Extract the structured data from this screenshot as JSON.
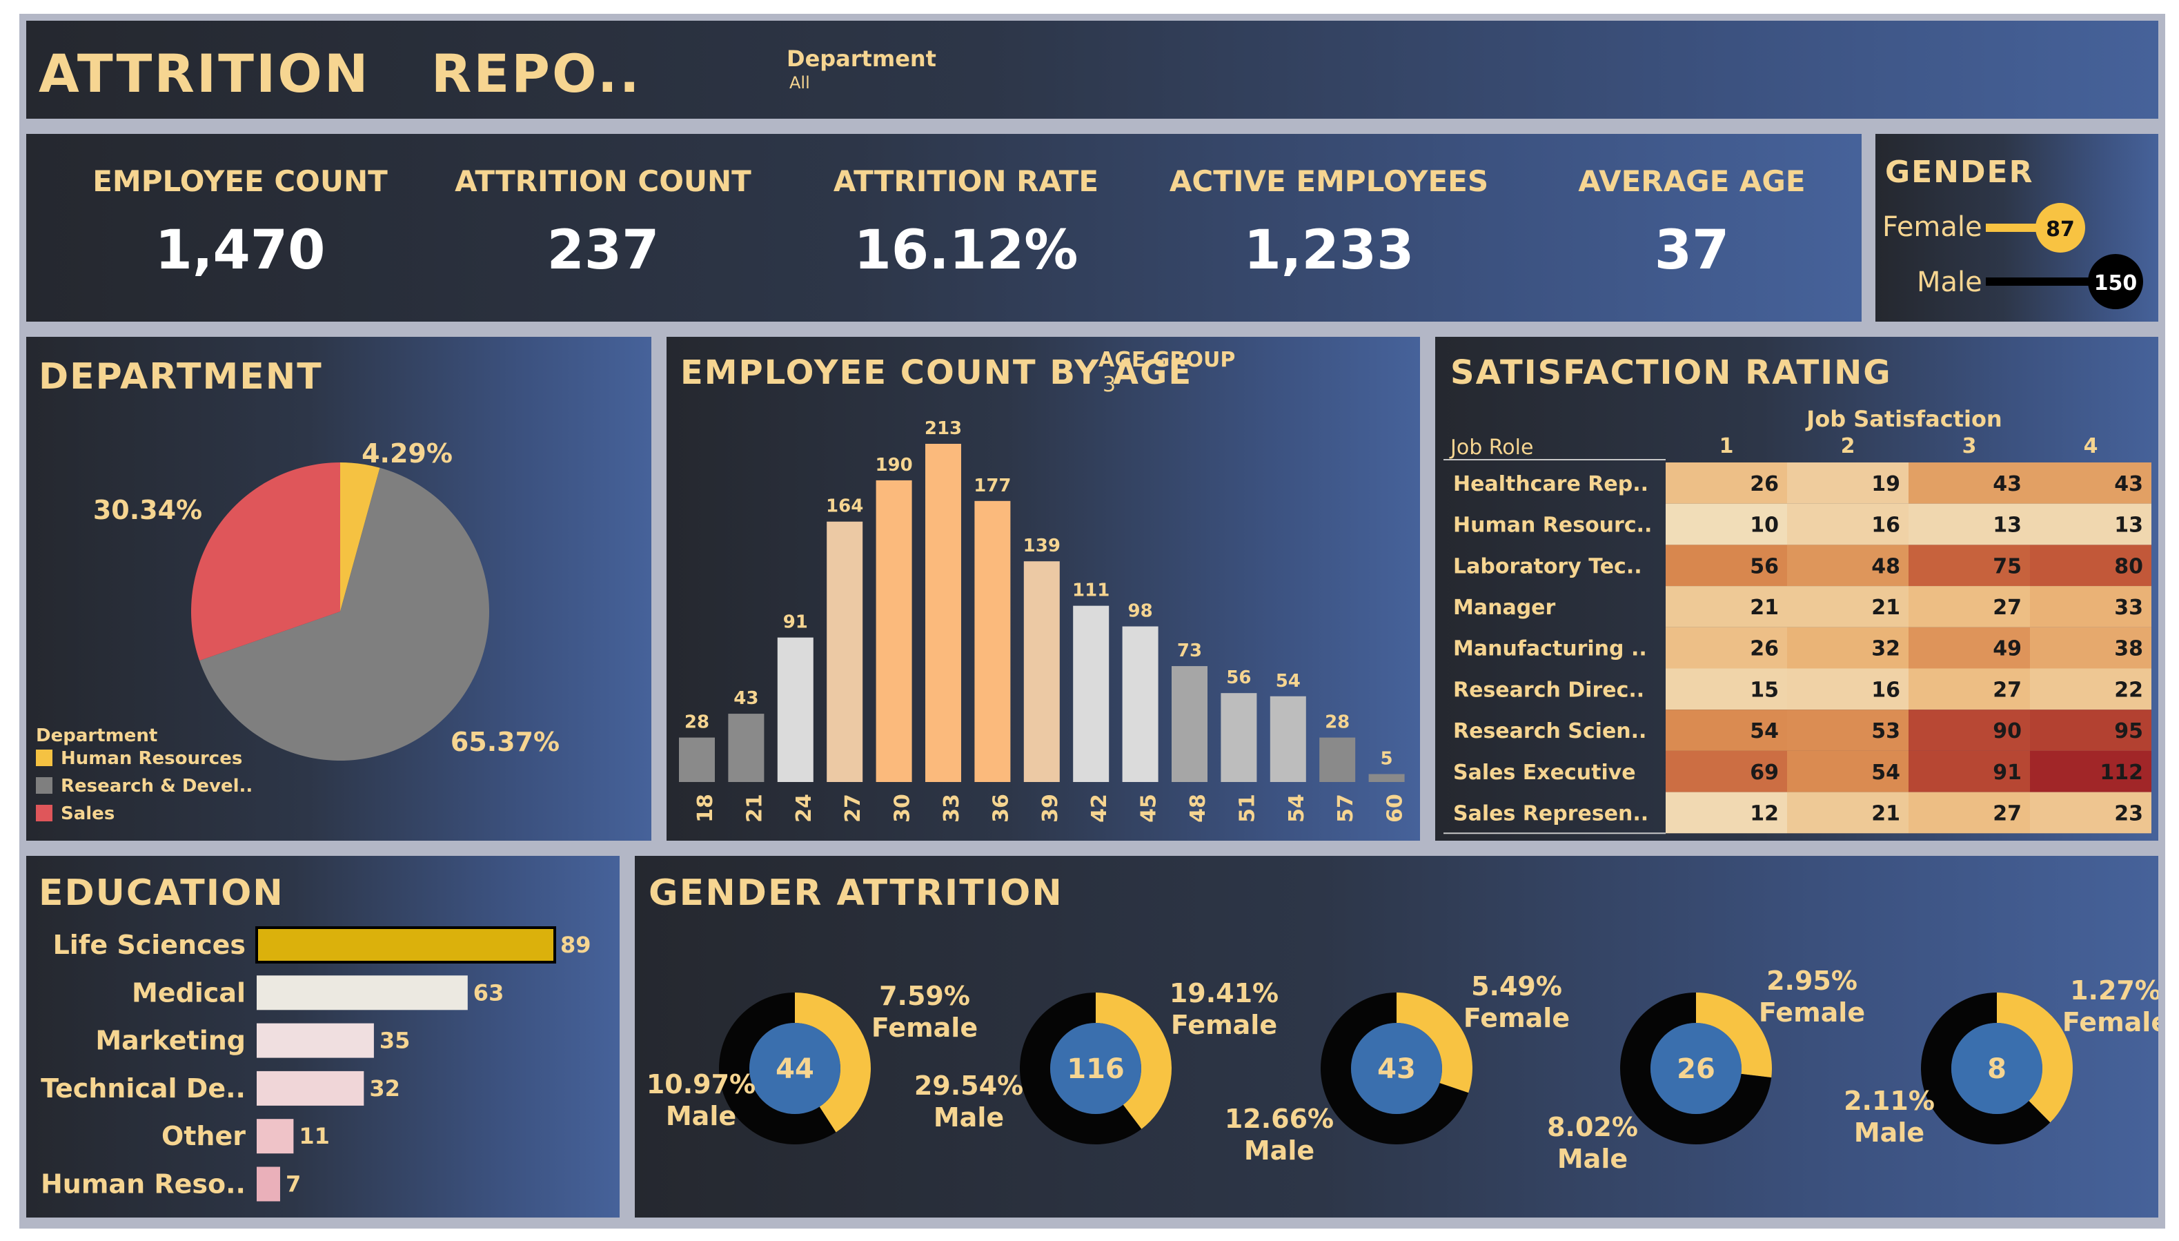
{
  "header": {
    "title": "ATTRITION   REPO..",
    "filter_label": "Department",
    "filter_value": "All"
  },
  "kpis": [
    {
      "label": "EMPLOYEE COUNT",
      "value": "1,470"
    },
    {
      "label": "ATTRITION COUNT",
      "value": "237"
    },
    {
      "label": "ATTRITION RATE",
      "value": "16.12%"
    },
    {
      "label": "ACTIVE EMPLOYEES",
      "value": "1,233"
    },
    {
      "label": "AVERAGE AGE",
      "value": "37"
    }
  ],
  "gender": {
    "title": "GENDER",
    "rows": [
      {
        "label": "Female",
        "value": "87",
        "color": "#f8c342"
      },
      {
        "label": "Male",
        "value": "150",
        "color": "#000000"
      }
    ]
  },
  "department": {
    "title": "DEPARTMENT",
    "legend_title": "Department",
    "slices": [
      {
        "name": "Human Resources",
        "pct": 4.29,
        "label": "4.29%",
        "color": "#f5c242"
      },
      {
        "name": "Research & Devel..",
        "pct": 65.37,
        "label": "65.37%",
        "color": "#7f7f7f"
      },
      {
        "name": "Sales",
        "pct": 30.34,
        "label": "30.34%",
        "color": "#df565a"
      }
    ]
  },
  "age": {
    "title": "EMPLOYEE COUNT BY AGE",
    "overlay_label": "AGE GROUP",
    "overlay_sub": "3"
  },
  "chart_data": {
    "type": "bar",
    "title": "EMPLOYEE COUNT BY AGE",
    "categories": [
      "18",
      "21",
      "24",
      "27",
      "30",
      "33",
      "36",
      "39",
      "42",
      "45",
      "48",
      "51",
      "54",
      "57",
      "60"
    ],
    "values": [
      28,
      43,
      91,
      164,
      190,
      213,
      177,
      139,
      111,
      98,
      73,
      56,
      54,
      28,
      5
    ],
    "colors": [
      "#8a8a8a",
      "#8a8a8a",
      "#dbdbdb",
      "#ecc9a4",
      "#fbba7c",
      "#fbba7c",
      "#fbba7c",
      "#ecc9a4",
      "#dbdbdb",
      "#dbdbdb",
      "#a6a6a6",
      "#bdbdbd",
      "#bdbdbd",
      "#8a8a8a",
      "#8a8a8a"
    ]
  },
  "satisfaction": {
    "title": "SATISFACTION RATING",
    "column_header": "Job Satisfaction",
    "row_header": "Job Role",
    "columns": [
      "1",
      "2",
      "3",
      "4"
    ],
    "rows": [
      {
        "role": "Healthcare Rep..",
        "values": [
          26,
          19,
          43,
          43
        ]
      },
      {
        "role": "Human Resourc..",
        "values": [
          10,
          16,
          13,
          13
        ]
      },
      {
        "role": "Laboratory Tec..",
        "values": [
          56,
          48,
          75,
          80
        ]
      },
      {
        "role": "Manager",
        "values": [
          21,
          21,
          27,
          33
        ]
      },
      {
        "role": "Manufacturing ..",
        "values": [
          26,
          32,
          49,
          38
        ]
      },
      {
        "role": "Research Direc..",
        "values": [
          15,
          16,
          27,
          22
        ]
      },
      {
        "role": "Research Scien..",
        "values": [
          54,
          53,
          90,
          95
        ]
      },
      {
        "role": "Sales Executive",
        "values": [
          69,
          54,
          91,
          112
        ]
      },
      {
        "role": "Sales Represen..",
        "values": [
          12,
          21,
          27,
          23
        ]
      }
    ]
  },
  "education": {
    "title": "EDUCATION",
    "items": [
      {
        "label": "Life Sciences",
        "value": 89,
        "color": "#dbb10c"
      },
      {
        "label": "Medical",
        "value": 63,
        "color": "#ece9e1"
      },
      {
        "label": "Marketing",
        "value": 35,
        "color": "#f0dfe0"
      },
      {
        "label": "Technical De..",
        "value": 32,
        "color": "#f0d6d8"
      },
      {
        "label": "Other",
        "value": 11,
        "color": "#efc3c8"
      },
      {
        "label": "Human Reso..",
        "value": 7,
        "color": "#eab0ba"
      }
    ]
  },
  "gender_attrition": {
    "title": "GENDER ATTRITION",
    "female_label": "Female",
    "male_label": "Male",
    "donuts": [
      {
        "center": "44",
        "female_pct": "7.59%",
        "male_pct": "10.97%",
        "female_frac": 0.409
      },
      {
        "center": "116",
        "female_pct": "19.41%",
        "male_pct": "29.54%",
        "female_frac": 0.397
      },
      {
        "center": "43",
        "female_pct": "5.49%",
        "male_pct": "12.66%",
        "female_frac": 0.302
      },
      {
        "center": "26",
        "female_pct": "2.95%",
        "male_pct": "8.02%",
        "female_frac": 0.269
      },
      {
        "center": "8",
        "female_pct": "1.27%",
        "male_pct": "2.11%",
        "female_frac": 0.376
      }
    ]
  }
}
